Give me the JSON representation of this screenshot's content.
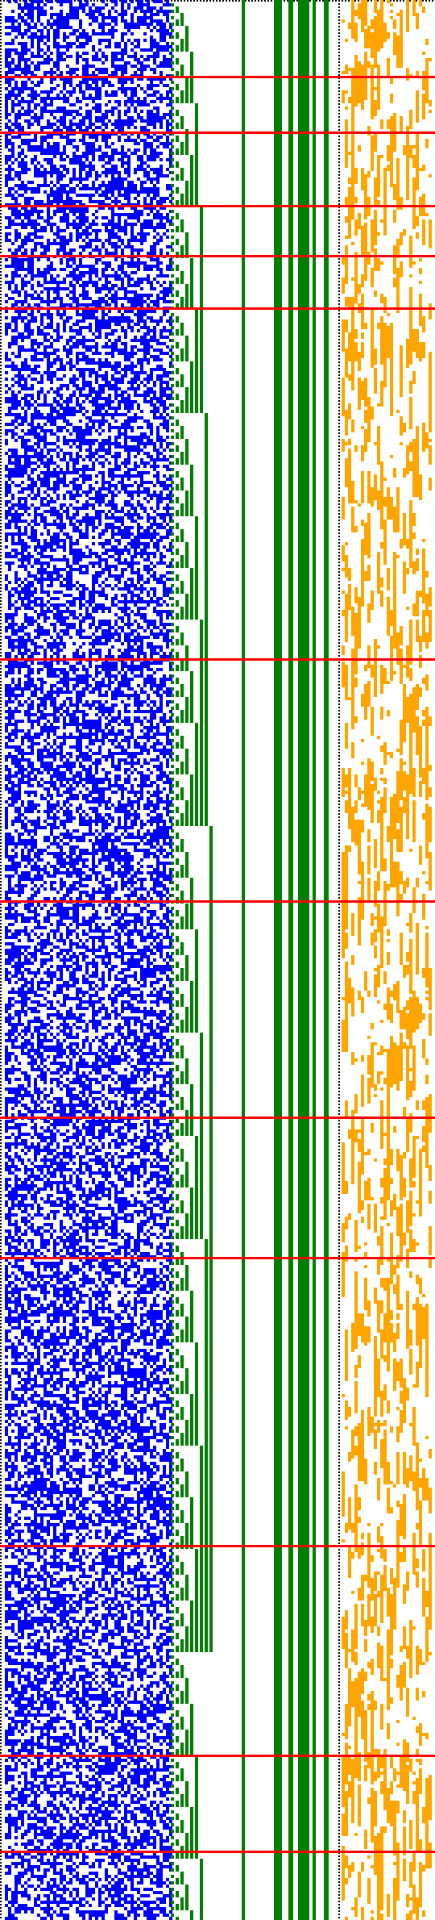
{
  "figure": {
    "kind": "bit-pattern cellular diagram",
    "background_color": "#ffffff",
    "panels": [
      {
        "id": "random-bits-panel",
        "color": "#0000ff",
        "fill_fraction": 0.55
      },
      {
        "id": "counter-staircase-panel",
        "color": "#007f00"
      },
      {
        "id": "steady-bars-panel",
        "color": "#007f00"
      },
      {
        "id": "sparse-bits-panel",
        "color": "#ffa500",
        "fill_fraction": 0.4
      }
    ],
    "dotted_edge_color": "#000000",
    "highlight_color": "#ff0000",
    "highlight_row_count": 12
  }
}
